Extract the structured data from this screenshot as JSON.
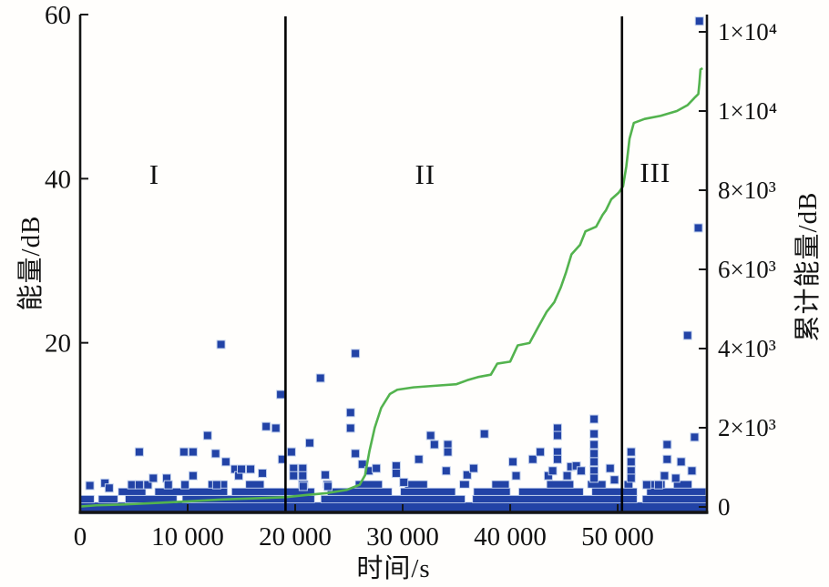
{
  "figure": {
    "background": "#fffefc"
  },
  "chart_data": {
    "type": "scatter",
    "title": "",
    "xlabel": "时间/s",
    "ylabel_left": "能量/dB",
    "ylabel_right": "累计能量/dB",
    "xlim": [
      0,
      58300
    ],
    "ylim_left": [
      -0.665,
      60.0
    ],
    "ylim_right": [
      -138,
      12437
    ],
    "grid": "off",
    "legend": "none",
    "x_ticks": [
      {
        "value": 0,
        "label": "0"
      },
      {
        "value": 10000,
        "label": "10 000"
      },
      {
        "value": 20000,
        "label": "20 000"
      },
      {
        "value": 30000,
        "label": "30 000"
      },
      {
        "value": 40000,
        "label": "40 000"
      },
      {
        "value": 50000,
        "label": "50 000"
      }
    ],
    "left_ticks": [
      {
        "value": 20,
        "label": "20"
      },
      {
        "value": 40,
        "label": "40"
      },
      {
        "value": 60,
        "label": "60"
      }
    ],
    "right_ticks": [
      {
        "value": 0,
        "label": "0"
      },
      {
        "value": 2000,
        "label": "2×10³"
      },
      {
        "value": 4000,
        "label": "4×10³"
      },
      {
        "value": 6000,
        "label": "6×10³"
      },
      {
        "value": 8000,
        "label": "8×10³"
      },
      {
        "value": 10000,
        "label": "1×10⁴"
      },
      {
        "value": 12000,
        "label": "1×10⁴"
      }
    ],
    "dividers_t": [
      19100,
      50400
    ],
    "regions": [
      {
        "label": "I",
        "t": 6900,
        "db": 40.5
      },
      {
        "label": "II",
        "t": 32100,
        "db": 40.5
      },
      {
        "label": "III",
        "t": 53500,
        "db": 40.7
      }
    ],
    "colors": {
      "marker": "#2243a6",
      "marker_edge": "#c3d2ee",
      "line": "#53b34e",
      "axis": "#151515",
      "divider": "#000000",
      "text": "#111111"
    },
    "scatter": [
      [
        900,
        2.6
      ],
      [
        2300,
        2.9
      ],
      [
        2700,
        2.3
      ],
      [
        4800,
        2.7
      ],
      [
        5500,
        6.7
      ],
      [
        5500,
        2.7
      ],
      [
        6300,
        2.7
      ],
      [
        6800,
        3.5
      ],
      [
        8050,
        3.5
      ],
      [
        8200,
        2.7
      ],
      [
        9650,
        6.7
      ],
      [
        9750,
        2.7
      ],
      [
        10500,
        6.7
      ],
      [
        10500,
        3.8
      ],
      [
        11850,
        8.7
      ],
      [
        12600,
        6.5
      ],
      [
        12700,
        2.7
      ],
      [
        13100,
        19.8
      ],
      [
        13550,
        5.5
      ],
      [
        14400,
        4.6
      ],
      [
        14750,
        3.8
      ],
      [
        15000,
        4.6
      ],
      [
        15850,
        4.6
      ],
      [
        16950,
        4.1
      ],
      [
        17300,
        9.8
      ],
      [
        18200,
        9.6
      ],
      [
        18650,
        13.7
      ],
      [
        18800,
        5.8
      ],
      [
        19650,
        6.7
      ],
      [
        19850,
        4.7
      ],
      [
        19850,
        3.8
      ],
      [
        20700,
        4.7
      ],
      [
        20700,
        3.8
      ],
      [
        20750,
        2.5
      ],
      [
        21350,
        7.8
      ],
      [
        22350,
        15.7
      ],
      [
        22800,
        3.9
      ],
      [
        23050,
        2.5
      ],
      [
        25150,
        11.5
      ],
      [
        25150,
        9.6
      ],
      [
        25600,
        18.7
      ],
      [
        25600,
        6.5
      ],
      [
        26250,
        5.2
      ],
      [
        26850,
        4.4
      ],
      [
        27550,
        4.7
      ],
      [
        29400,
        5.0
      ],
      [
        29400,
        4.1
      ],
      [
        30100,
        3.0
      ],
      [
        31500,
        5.8
      ],
      [
        32600,
        8.7
      ],
      [
        32950,
        7.6
      ],
      [
        34050,
        4.4
      ],
      [
        34200,
        7.6
      ],
      [
        34200,
        6.7
      ],
      [
        36000,
        3.9
      ],
      [
        36600,
        4.7
      ],
      [
        37600,
        8.9
      ],
      [
        40250,
        5.5
      ],
      [
        40550,
        3.8
      ],
      [
        42100,
        5.8
      ],
      [
        42800,
        6.7
      ],
      [
        43550,
        3.8
      ],
      [
        43950,
        4.4
      ],
      [
        44400,
        9.6
      ],
      [
        44400,
        8.7
      ],
      [
        44400,
        6.7
      ],
      [
        44400,
        5.8
      ],
      [
        45300,
        3.8
      ],
      [
        45650,
        4.9
      ],
      [
        46150,
        5.0
      ],
      [
        46600,
        4.4
      ],
      [
        47800,
        10.7
      ],
      [
        47800,
        8.9
      ],
      [
        47800,
        7.6
      ],
      [
        47800,
        6.5
      ],
      [
        47800,
        5.5
      ],
      [
        47800,
        4.4
      ],
      [
        47800,
        3.5
      ],
      [
        49300,
        4.7
      ],
      [
        49700,
        3.3
      ],
      [
        51250,
        6.7
      ],
      [
        51250,
        5.5
      ],
      [
        51250,
        4.4
      ],
      [
        51250,
        3.5
      ],
      [
        52700,
        2.7
      ],
      [
        53800,
        2.7
      ],
      [
        54350,
        3.8
      ],
      [
        54600,
        7.6
      ],
      [
        54600,
        5.8
      ],
      [
        55400,
        3.5
      ],
      [
        55900,
        5.5
      ],
      [
        56500,
        20.9
      ],
      [
        56900,
        4.4
      ],
      [
        57150,
        8.5
      ],
      [
        57500,
        34.0
      ],
      [
        57600,
        59.2
      ]
    ],
    "bands": [
      {
        "db": -0.15,
        "h": 13,
        "segments": [
          [
            0,
            58300
          ]
        ]
      },
      {
        "db": 0.95,
        "h": 8,
        "segments": [
          [
            0,
            1300
          ],
          [
            1700,
            3500
          ],
          [
            4200,
            9000
          ],
          [
            9500,
            21800
          ],
          [
            22400,
            35800
          ],
          [
            36500,
            51800
          ],
          [
            52300,
            58300
          ]
        ]
      },
      {
        "db": 1.85,
        "h": 8,
        "segments": [
          [
            3550,
            6100
          ],
          [
            6950,
            13700
          ],
          [
            14100,
            21800
          ],
          [
            23000,
            29000
          ],
          [
            29800,
            34900
          ],
          [
            36600,
            40000
          ],
          [
            40800,
            46800
          ],
          [
            47600,
            51800
          ],
          [
            52700,
            58200
          ]
        ]
      },
      {
        "db": 2.75,
        "h": 8,
        "segments": [
          [
            11900,
            13700
          ],
          [
            15400,
            17100
          ],
          [
            20300,
            21200
          ],
          [
            22600,
            23400
          ],
          [
            25600,
            28100
          ],
          [
            30200,
            32300
          ],
          [
            35300,
            36200
          ],
          [
            38300,
            39900
          ],
          [
            43400,
            45900
          ],
          [
            47200,
            48900
          ],
          [
            50600,
            51400
          ],
          [
            52300,
            54400
          ],
          [
            55200,
            56900
          ]
        ]
      }
    ],
    "cumulative": [
      [
        0,
        10
      ],
      [
        1500,
        40
      ],
      [
        4000,
        60
      ],
      [
        7000,
        100
      ],
      [
        10000,
        140
      ],
      [
        13000,
        185
      ],
      [
        16000,
        215
      ],
      [
        19100,
        245
      ],
      [
        21000,
        300
      ],
      [
        23000,
        350
      ],
      [
        24800,
        430
      ],
      [
        26000,
        560
      ],
      [
        26500,
        800
      ],
      [
        26900,
        1400
      ],
      [
        27400,
        2000
      ],
      [
        28000,
        2500
      ],
      [
        28800,
        2850
      ],
      [
        29500,
        2960
      ],
      [
        31000,
        3020
      ],
      [
        33000,
        3060
      ],
      [
        35000,
        3100
      ],
      [
        36000,
        3200
      ],
      [
        37000,
        3280
      ],
      [
        38200,
        3340
      ],
      [
        38800,
        3620
      ],
      [
        40000,
        3670
      ],
      [
        40700,
        4080
      ],
      [
        41800,
        4140
      ],
      [
        42600,
        4540
      ],
      [
        43400,
        4930
      ],
      [
        44100,
        5170
      ],
      [
        44700,
        5540
      ],
      [
        45200,
        5930
      ],
      [
        45700,
        6380
      ],
      [
        46500,
        6620
      ],
      [
        47000,
        6960
      ],
      [
        48000,
        7080
      ],
      [
        48600,
        7380
      ],
      [
        48900,
        7490
      ],
      [
        49400,
        7770
      ],
      [
        50100,
        7940
      ],
      [
        50500,
        8100
      ],
      [
        50800,
        8600
      ],
      [
        51100,
        9300
      ],
      [
        51500,
        9700
      ],
      [
        52500,
        9800
      ],
      [
        54000,
        9880
      ],
      [
        55500,
        10000
      ],
      [
        56500,
        10150
      ],
      [
        57200,
        10350
      ],
      [
        57500,
        10430
      ],
      [
        57600,
        10700
      ],
      [
        57700,
        11050
      ],
      [
        57900,
        11080
      ]
    ]
  }
}
